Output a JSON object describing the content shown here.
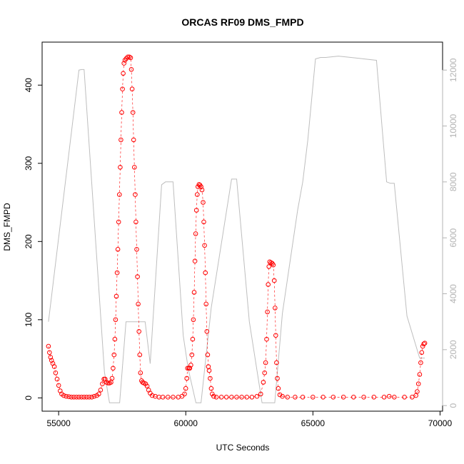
{
  "chart_data": {
    "type": "scatter",
    "title": "ORCAS RF09 DMS_FMPD",
    "xlabel": "UTC Seconds",
    "ylabel": "DMS_FMPD",
    "xlim": [
      54350,
      70100
    ],
    "ylim": [
      -17,
      455
    ],
    "y2lim": [
      -200,
      13000
    ],
    "x_ticks": [
      55000,
      60000,
      65000,
      70000
    ],
    "y_ticks": [
      0,
      100,
      200,
      300,
      400
    ],
    "y2_ticks": [
      0,
      2000,
      4000,
      6000,
      8000,
      10000,
      12000
    ],
    "grid": false,
    "series": [
      {
        "role": "DMS_FMPD",
        "color": "#ff0000",
        "marker": "open-circle",
        "points": [
          [
            54600,
            66
          ],
          [
            54640,
            58
          ],
          [
            54680,
            52
          ],
          [
            54720,
            48
          ],
          [
            54770,
            44
          ],
          [
            54830,
            40
          ],
          [
            54880,
            32
          ],
          [
            54940,
            24
          ],
          [
            55000,
            16
          ],
          [
            55060,
            9
          ],
          [
            55120,
            5
          ],
          [
            55200,
            3
          ],
          [
            55300,
            2
          ],
          [
            55400,
            1.5
          ],
          [
            55500,
            1
          ],
          [
            55600,
            1
          ],
          [
            55700,
            1
          ],
          [
            55800,
            1
          ],
          [
            55900,
            1
          ],
          [
            56000,
            1
          ],
          [
            56100,
            1
          ],
          [
            56200,
            1
          ],
          [
            56300,
            1
          ],
          [
            56400,
            2
          ],
          [
            56500,
            3
          ],
          [
            56580,
            5
          ],
          [
            56650,
            10
          ],
          [
            56720,
            18
          ],
          [
            56780,
            24
          ],
          [
            56830,
            24
          ],
          [
            56880,
            20
          ],
          [
            56940,
            19
          ],
          [
            57000,
            19
          ],
          [
            57060,
            20
          ],
          [
            57100,
            25
          ],
          [
            57140,
            38
          ],
          [
            57180,
            55
          ],
          [
            57210,
            75
          ],
          [
            57240,
            100
          ],
          [
            57270,
            130
          ],
          [
            57300,
            160
          ],
          [
            57330,
            190
          ],
          [
            57360,
            225
          ],
          [
            57390,
            260
          ],
          [
            57420,
            295
          ],
          [
            57450,
            330
          ],
          [
            57480,
            365
          ],
          [
            57510,
            395
          ],
          [
            57540,
            415
          ],
          [
            57570,
            428
          ],
          [
            57610,
            432
          ],
          [
            57660,
            434
          ],
          [
            57720,
            436
          ],
          [
            57780,
            436
          ],
          [
            57830,
            435
          ],
          [
            57860,
            420
          ],
          [
            57890,
            395
          ],
          [
            57920,
            365
          ],
          [
            57950,
            330
          ],
          [
            57980,
            295
          ],
          [
            58010,
            260
          ],
          [
            58040,
            225
          ],
          [
            58070,
            190
          ],
          [
            58100,
            155
          ],
          [
            58130,
            120
          ],
          [
            58160,
            85
          ],
          [
            58190,
            55
          ],
          [
            58220,
            32
          ],
          [
            58260,
            22
          ],
          [
            58300,
            20
          ],
          [
            58350,
            19
          ],
          [
            58420,
            18
          ],
          [
            58480,
            15
          ],
          [
            58540,
            10
          ],
          [
            58600,
            6
          ],
          [
            58680,
            3
          ],
          [
            58800,
            2
          ],
          [
            58950,
            1
          ],
          [
            59100,
            1
          ],
          [
            59300,
            1
          ],
          [
            59500,
            1
          ],
          [
            59700,
            1
          ],
          [
            59850,
            2
          ],
          [
            59950,
            5
          ],
          [
            60000,
            12
          ],
          [
            60040,
            25
          ],
          [
            60070,
            38
          ],
          [
            60120,
            38
          ],
          [
            60160,
            38
          ],
          [
            60200,
            42
          ],
          [
            60240,
            55
          ],
          [
            60270,
            75
          ],
          [
            60300,
            100
          ],
          [
            60330,
            135
          ],
          [
            60360,
            175
          ],
          [
            60390,
            210
          ],
          [
            60420,
            240
          ],
          [
            60450,
            260
          ],
          [
            60480,
            270
          ],
          [
            60520,
            273
          ],
          [
            60560,
            272
          ],
          [
            60600,
            270
          ],
          [
            60640,
            266
          ],
          [
            60680,
            250
          ],
          [
            60710,
            225
          ],
          [
            60740,
            195
          ],
          [
            60770,
            160
          ],
          [
            60800,
            120
          ],
          [
            60830,
            85
          ],
          [
            60860,
            55
          ],
          [
            60890,
            40
          ],
          [
            60920,
            35
          ],
          [
            60960,
            25
          ],
          [
            61000,
            12
          ],
          [
            61040,
            5
          ],
          [
            61100,
            2
          ],
          [
            61200,
            1
          ],
          [
            61400,
            1
          ],
          [
            61600,
            1
          ],
          [
            61800,
            1
          ],
          [
            62000,
            1
          ],
          [
            62200,
            1
          ],
          [
            62400,
            1
          ],
          [
            62600,
            1
          ],
          [
            62800,
            2
          ],
          [
            62950,
            5
          ],
          [
            63050,
            20
          ],
          [
            63100,
            32
          ],
          [
            63140,
            45
          ],
          [
            63180,
            75
          ],
          [
            63210,
            110
          ],
          [
            63240,
            145
          ],
          [
            63270,
            168
          ],
          [
            63300,
            174
          ],
          [
            63350,
            173
          ],
          [
            63400,
            172
          ],
          [
            63440,
            170
          ],
          [
            63480,
            150
          ],
          [
            63510,
            115
          ],
          [
            63540,
            80
          ],
          [
            63570,
            45
          ],
          [
            63600,
            25
          ],
          [
            63640,
            12
          ],
          [
            63700,
            4
          ],
          [
            63800,
            2
          ],
          [
            64000,
            1
          ],
          [
            64300,
            1
          ],
          [
            64600,
            1
          ],
          [
            65000,
            1
          ],
          [
            65400,
            1
          ],
          [
            65800,
            1
          ],
          [
            66200,
            1
          ],
          [
            66600,
            1
          ],
          [
            67000,
            1
          ],
          [
            67400,
            1
          ],
          [
            67800,
            1
          ],
          [
            68000,
            2
          ],
          [
            68200,
            1
          ],
          [
            68600,
            1
          ],
          [
            68900,
            1
          ],
          [
            69050,
            3
          ],
          [
            69100,
            8
          ],
          [
            69150,
            18
          ],
          [
            69200,
            30
          ],
          [
            69240,
            45
          ],
          [
            69280,
            58
          ],
          [
            69320,
            66
          ],
          [
            69360,
            69
          ],
          [
            69400,
            70
          ]
        ]
      },
      {
        "role": "secondary-axis",
        "color": "#bebebe",
        "line": true,
        "points": [
          [
            54600,
            3000
          ],
          [
            55800,
            12000
          ],
          [
            55900,
            12020
          ],
          [
            56000,
            12020
          ],
          [
            56800,
            1200
          ],
          [
            57000,
            100
          ],
          [
            57400,
            100
          ],
          [
            57650,
            3000
          ],
          [
            58400,
            3000
          ],
          [
            58600,
            1500
          ],
          [
            59050,
            7900
          ],
          [
            59200,
            8000
          ],
          [
            59500,
            8000
          ],
          [
            59900,
            2500
          ],
          [
            60100,
            1300
          ],
          [
            60400,
            100
          ],
          [
            60600,
            100
          ],
          [
            61000,
            3500
          ],
          [
            61800,
            8100
          ],
          [
            62000,
            8100
          ],
          [
            62500,
            3000
          ],
          [
            63000,
            100
          ],
          [
            63500,
            100
          ],
          [
            63800,
            3300
          ],
          [
            64400,
            7000
          ],
          [
            64600,
            8000
          ],
          [
            64800,
            9500
          ],
          [
            65100,
            12400
          ],
          [
            65300,
            12450
          ],
          [
            65500,
            12450
          ],
          [
            66000,
            12500
          ],
          [
            66500,
            12450
          ],
          [
            67000,
            12400
          ],
          [
            67500,
            12350
          ],
          [
            67900,
            8000
          ],
          [
            68050,
            7950
          ],
          [
            68200,
            7950
          ],
          [
            68700,
            3200
          ],
          [
            69200,
            1700
          ],
          [
            69400,
            1700
          ]
        ]
      }
    ]
  }
}
